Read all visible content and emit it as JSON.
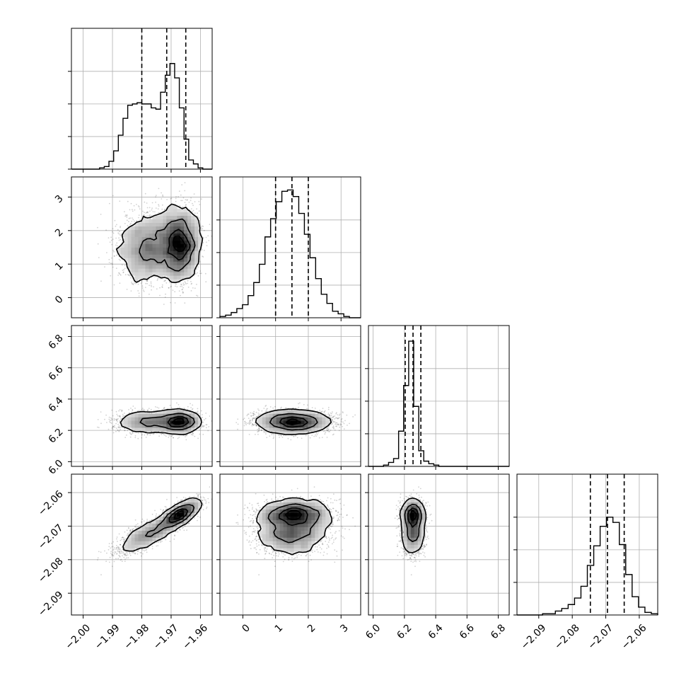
{
  "chart_data": {
    "type": "corner",
    "title": "",
    "grid": true,
    "parameters": [
      {
        "index": 0,
        "xlim": [
          -2.004,
          -1.956
        ],
        "ticks": [
          -2.0,
          -1.99,
          -1.98,
          -1.97,
          -1.96
        ],
        "tick_labels": [
          "−2.00",
          "−1.99",
          "−1.98",
          "−1.97",
          "−1.96"
        ],
        "quantiles": [
          -1.98,
          -1.9715,
          -1.965
        ],
        "hist_ymax": 1.08,
        "hist_ticks": [
          0.0,
          0.25,
          0.5,
          0.75
        ],
        "histogram": [
          0,
          0,
          0,
          0,
          0,
          0,
          0.01,
          0.02,
          0.06,
          0.14,
          0.26,
          0.39,
          0.49,
          0.5,
          0.51,
          0.5,
          0.5,
          0.47,
          0.46,
          0.59,
          0.72,
          0.81,
          0.7,
          0.47,
          0.23,
          0.07,
          0.04,
          0.01,
          0,
          0
        ]
      },
      {
        "index": 1,
        "xlim": [
          -0.7,
          3.6
        ],
        "ticks": [
          0,
          1,
          2,
          3
        ],
        "tick_labels": [
          "0",
          "1",
          "2",
          "3"
        ],
        "quantiles": [
          1.0,
          1.5,
          2.0
        ],
        "hist_ymax": 1.08,
        "hist_ticks": [
          0.0,
          0.25,
          0.5,
          0.75
        ],
        "histogram": [
          0.01,
          0.02,
          0.04,
          0.07,
          0.1,
          0.17,
          0.27,
          0.41,
          0.62,
          0.76,
          0.89,
          0.97,
          0.98,
          0.93,
          0.8,
          0.64,
          0.46,
          0.3,
          0.18,
          0.11,
          0.05,
          0.03,
          0.01,
          0,
          0
        ]
      },
      {
        "index": 2,
        "xlim": [
          5.97,
          6.87
        ],
        "ticks": [
          6.0,
          6.2,
          6.4,
          6.6,
          6.8
        ],
        "tick_labels": [
          "6.0",
          "6.2",
          "6.4",
          "6.6",
          "6.8"
        ],
        "quantiles": [
          6.205,
          6.255,
          6.305
        ],
        "hist_ymax": 1.08,
        "hist_ticks": [
          0.0,
          0.25,
          0.5,
          0.75
        ],
        "histogram": [
          0,
          0,
          0,
          0.01,
          0.03,
          0.06,
          0.27,
          0.62,
          0.96,
          0.46,
          0.12,
          0.04,
          0.02,
          0.01,
          0,
          0,
          0,
          0,
          0,
          0,
          0,
          0,
          0,
          0,
          0,
          0,
          0,
          0
        ]
      },
      {
        "index": 3,
        "xlim": [
          -2.0965,
          -2.0545
        ],
        "ticks": [
          -2.09,
          -2.08,
          -2.07,
          -2.06
        ],
        "tick_labels": [
          "−2.09",
          "−2.08",
          "−2.07",
          "−2.06"
        ],
        "quantiles": [
          -2.0746,
          -2.0695,
          -2.0645
        ],
        "hist_ymax": 1.08,
        "hist_ticks": [
          0.0,
          0.25,
          0.5,
          0.75
        ],
        "histogram": [
          0,
          0,
          0,
          0,
          0.01,
          0.01,
          0.03,
          0.05,
          0.08,
          0.13,
          0.22,
          0.38,
          0.53,
          0.68,
          0.75,
          0.71,
          0.54,
          0.31,
          0.14,
          0.06,
          0.02,
          0.01
        ]
      }
    ],
    "row_ylims": {
      "1": [
        -0.6,
        3.6
      ],
      "2": [
        5.97,
        6.87
      ],
      "3": [
        -2.0965,
        -2.0545
      ]
    },
    "row_yticks": {
      "1": {
        "ticks": [
          0,
          1,
          2,
          3
        ],
        "labels": [
          "0",
          "1",
          "2",
          "3"
        ]
      },
      "2": {
        "ticks": [
          6.0,
          6.2,
          6.4,
          6.6,
          6.8
        ],
        "labels": [
          "6.0",
          "6.2",
          "6.4",
          "6.6",
          "6.8"
        ]
      },
      "3": {
        "ticks": [
          -2.09,
          -2.08,
          -2.07,
          -2.06
        ],
        "labels": [
          "−2.09",
          "−2.08",
          "−2.07",
          "−2.06"
        ]
      }
    },
    "distributions": {
      "0": {
        "modes": [
          {
            "w": 0.45,
            "mu": -1.978,
            "sd": 0.0055
          },
          {
            "w": 0.55,
            "mu": -1.967,
            "sd": 0.0035
          }
        ]
      },
      "1": {
        "modes": [
          {
            "w": 1.0,
            "mu": 1.5,
            "sd": 0.55
          }
        ]
      },
      "2": {
        "modes": [
          {
            "w": 1.0,
            "mu": 6.255,
            "sd": 0.035
          }
        ]
      },
      "3": {
        "modes": [
          {
            "w": 0.45,
            "mu": -2.0725,
            "sd": 0.003
          },
          {
            "w": 0.55,
            "mu": -2.0665,
            "sd": 0.0022
          }
        ]
      }
    },
    "contour_levels": [
      0.118,
      0.393,
      0.675,
      0.865
    ],
    "panels": [
      {
        "row": 1,
        "col": 0,
        "kind": "scatter-density"
      },
      {
        "row": 2,
        "col": 0,
        "kind": "scatter-density"
      },
      {
        "row": 2,
        "col": 1,
        "kind": "scatter-density"
      },
      {
        "row": 3,
        "col": 0,
        "kind": "scatter-density"
      },
      {
        "row": 3,
        "col": 1,
        "kind": "scatter-density"
      },
      {
        "row": 3,
        "col": 2,
        "kind": "scatter-density"
      }
    ]
  }
}
